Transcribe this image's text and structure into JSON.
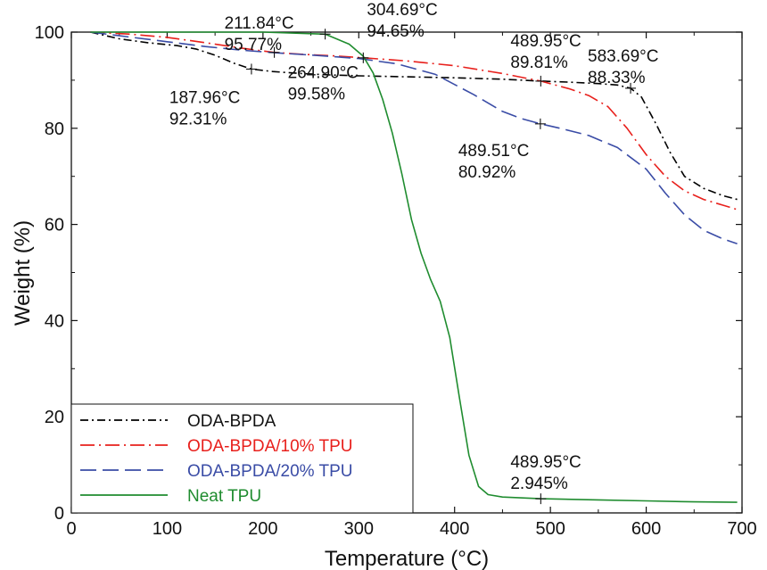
{
  "chart_data": {
    "type": "line",
    "title": "",
    "xlabel": "Temperature (°C)",
    "ylabel": "Weight (%)",
    "xlim": [
      0,
      700
    ],
    "ylim": [
      0,
      100
    ],
    "x_ticks": [
      "0",
      "100",
      "200",
      "300",
      "400",
      "500",
      "600",
      "700"
    ],
    "y_ticks": [
      "0",
      "20",
      "40",
      "60",
      "80",
      "100"
    ],
    "grid": false,
    "legend_position": "bottom-left",
    "series": [
      {
        "name": "ODA-BPDA",
        "color": "#000000",
        "dash": "dash-dot",
        "x": [
          20,
          50,
          80,
          110,
          130,
          150,
          170,
          187.96,
          210,
          240,
          270,
          300,
          350,
          400,
          450,
          489.95,
          520,
          550,
          570,
          583.69,
          595,
          610,
          625,
          640,
          660,
          680,
          695
        ],
        "y": [
          100,
          98.6,
          97.8,
          97.2,
          96.5,
          95.2,
          93.5,
          92.31,
          91.8,
          91.4,
          91.1,
          90.9,
          90.7,
          90.5,
          90.2,
          89.81,
          89.6,
          89.3,
          89.0,
          88.33,
          86.5,
          81.0,
          75.0,
          70.0,
          67.5,
          66.0,
          65.2
        ]
      },
      {
        "name": "ODA-BPDA/10% TPU",
        "color": "#e8201c",
        "dash": "long-dash-dot",
        "x": [
          20,
          60,
          100,
          140,
          180,
          211.84,
          240,
          270,
          304.69,
          350,
          400,
          450,
          489.95,
          520,
          540,
          560,
          580,
          600,
          620,
          640,
          660,
          680,
          695
        ],
        "y": [
          100,
          99.6,
          98.9,
          97.8,
          96.6,
          95.77,
          95.4,
          95.1,
          94.65,
          94.0,
          93.0,
          91.4,
          89.81,
          88.2,
          86.8,
          84.5,
          80.0,
          74.5,
          70.0,
          67.0,
          65.2,
          64.0,
          63.1
        ]
      },
      {
        "name": "ODA-BPDA/20% TPU",
        "color": "#3a4ca6",
        "dash": "long-dash",
        "x": [
          20,
          60,
          100,
          140,
          180,
          220,
          260,
          300,
          340,
          380,
          420,
          450,
          470,
          489.51,
          510,
          540,
          570,
          600,
          620,
          640,
          660,
          680,
          695
        ],
        "y": [
          100,
          99.0,
          98.0,
          97.0,
          96.2,
          95.6,
          95.1,
          94.5,
          93.4,
          91.2,
          87.0,
          83.5,
          82.0,
          80.92,
          80.0,
          78.5,
          76.0,
          71.5,
          66.5,
          62.0,
          58.8,
          57.0,
          56.0
        ]
      },
      {
        "name": "Neat TPU",
        "color": "#1f8c2f",
        "dash": "solid",
        "x": [
          20,
          100,
          200,
          264.9,
          290,
          304.69,
          315,
          325,
          335,
          345,
          355,
          365,
          375,
          385,
          395,
          405,
          415,
          425,
          435,
          450,
          489.95,
          550,
          600,
          650,
          695
        ],
        "y": [
          100,
          100,
          100,
          99.58,
          97.5,
          95.0,
          91.5,
          86.0,
          79.0,
          70.5,
          61.0,
          54.0,
          48.5,
          44.0,
          36.5,
          24.0,
          12.0,
          5.5,
          3.8,
          3.3,
          2.945,
          2.7,
          2.5,
          2.3,
          2.2
        ]
      }
    ],
    "markers": [
      {
        "series": "ODA-BPDA",
        "x": 187.96,
        "y": 92.31,
        "label_temp": "187.96°C",
        "label_pct": "92.31%"
      },
      {
        "series": "ODA-BPDA/10% TPU",
        "x": 211.84,
        "y": 95.77,
        "label_temp": "211.84°C",
        "label_pct": "95.77%"
      },
      {
        "series": "Neat TPU",
        "x": 264.9,
        "y": 99.58,
        "label_temp": "264.90°C",
        "label_pct": "99.58%"
      },
      {
        "series": "ODA-BPDA/10% TPU",
        "x": 304.69,
        "y": 94.65,
        "label_temp": "304.69°C",
        "label_pct": "94.65%"
      },
      {
        "series": "ODA-BPDA/10% TPU",
        "x": 489.95,
        "y": 89.81,
        "label_temp": "489.95°C",
        "label_pct": "89.81%"
      },
      {
        "series": "ODA-BPDA",
        "x": 583.69,
        "y": 88.33,
        "label_temp": "583.69°C",
        "label_pct": "88.33%"
      },
      {
        "series": "ODA-BPDA/20% TPU",
        "x": 489.51,
        "y": 80.92,
        "label_temp": "489.51°C",
        "label_pct": "80.92%"
      },
      {
        "series": "Neat TPU",
        "x": 489.95,
        "y": 2.945,
        "label_temp": "489.95°C",
        "label_pct": "2.945%"
      }
    ]
  }
}
